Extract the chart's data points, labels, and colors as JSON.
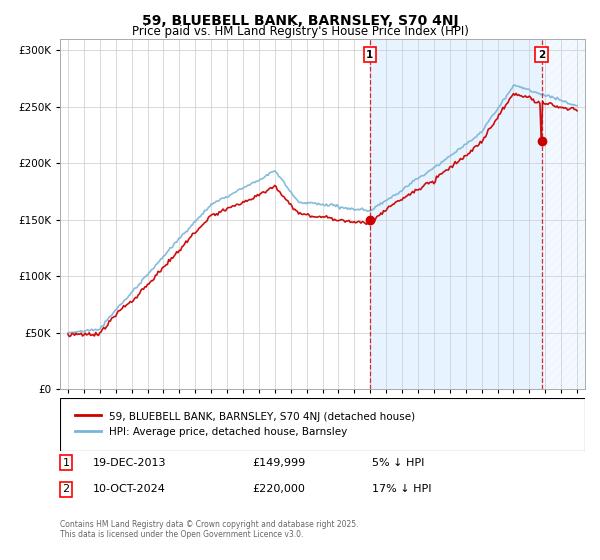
{
  "title": "59, BLUEBELL BANK, BARNSLEY, S70 4NJ",
  "subtitle": "Price paid vs. HM Land Registry's House Price Index (HPI)",
  "ylim": [
    0,
    310000
  ],
  "yticks": [
    0,
    50000,
    100000,
    150000,
    200000,
    250000,
    300000
  ],
  "xlim_start": 1994.5,
  "xlim_end": 2027.5,
  "hpi_color": "#7ab4d8",
  "price_color": "#cc0000",
  "dashed_color": "#cc0000",
  "marker1_x": 2013.97,
  "marker1_y": 149999,
  "marker2_x": 2024.78,
  "marker2_y": 220000,
  "transaction1_date": "19-DEC-2013",
  "transaction1_price": "£149,999",
  "transaction1_hpi": "5% ↓ HPI",
  "transaction2_date": "10-OCT-2024",
  "transaction2_price": "£220,000",
  "transaction2_hpi": "17% ↓ HPI",
  "legend_line1": "59, BLUEBELL BANK, BARNSLEY, S70 4NJ (detached house)",
  "legend_line2": "HPI: Average price, detached house, Barnsley",
  "footer": "Contains HM Land Registry data © Crown copyright and database right 2025.\nThis data is licensed under the Open Government Licence v3.0.",
  "background_color": "#ffffff",
  "grid_color": "#cccccc",
  "shade_color": "#ddeeff",
  "hatch_color": "#bbccdd"
}
